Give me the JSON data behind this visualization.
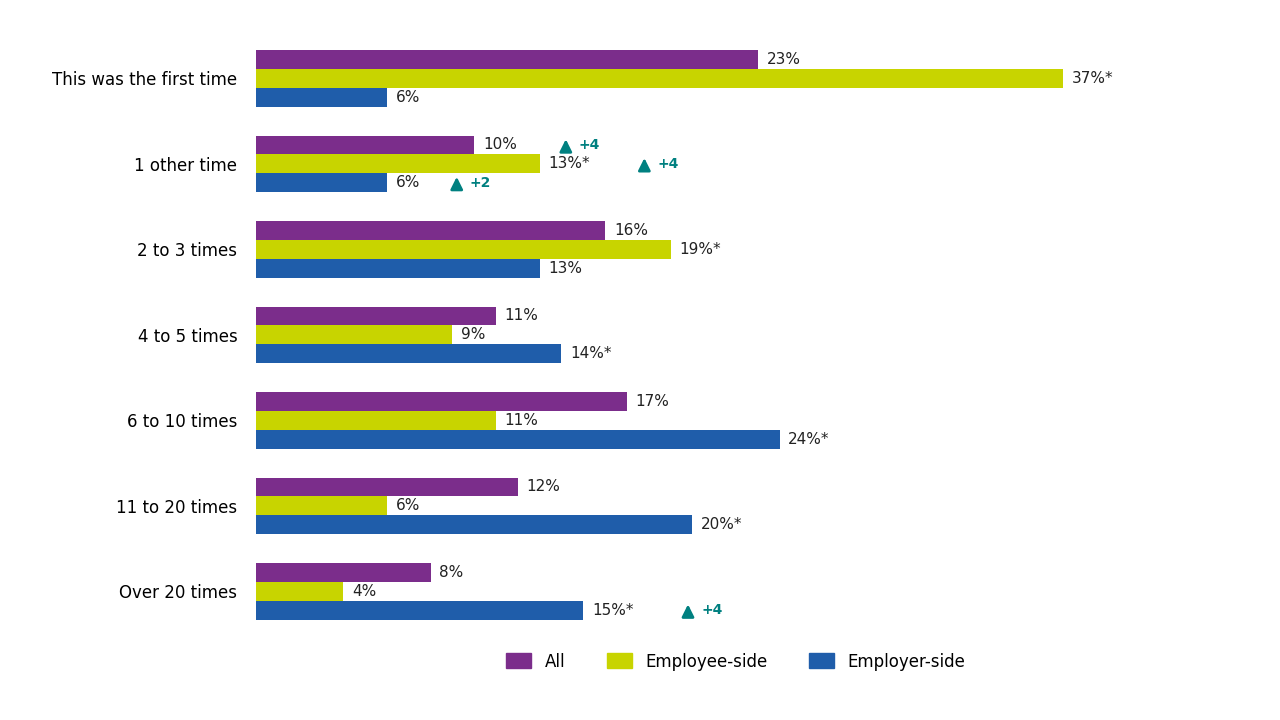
{
  "categories": [
    "This was the first time",
    "1 other time",
    "2 to 3 times",
    "4 to 5 times",
    "6 to 10 times",
    "11 to 20 times",
    "Over 20 times"
  ],
  "all_values": [
    23,
    10,
    16,
    11,
    17,
    12,
    8
  ],
  "employee_values": [
    37,
    13,
    19,
    9,
    11,
    6,
    4
  ],
  "employer_values": [
    6,
    6,
    13,
    14,
    24,
    20,
    15
  ],
  "all_labels": [
    "23%",
    "10%",
    "16%",
    "11%",
    "17%",
    "12%",
    "8%"
  ],
  "employee_labels": [
    "37%*",
    "13%*",
    "19%*",
    "9%",
    "11%",
    "6%",
    "4%"
  ],
  "employer_labels": [
    "6%",
    "6%",
    "13%",
    "14%*",
    "24%*",
    "20%*",
    "15%*"
  ],
  "color_all": "#7B2D8B",
  "color_employee": "#C8D400",
  "color_employer": "#1F5DAA",
  "color_arrow": "#008080",
  "arrow_annotations": [
    {
      "row": 1,
      "series": "all",
      "text": "+4"
    },
    {
      "row": 1,
      "series": "employee",
      "text": "+4"
    },
    {
      "row": 1,
      "series": "employer",
      "text": "+2"
    },
    {
      "row": 6,
      "series": "employer",
      "text": "+4"
    }
  ],
  "legend_labels": [
    "All",
    "Employee-side",
    "Employer-side"
  ],
  "bar_height": 0.22,
  "figsize": [
    12.8,
    7.2
  ],
  "dpi": 100
}
